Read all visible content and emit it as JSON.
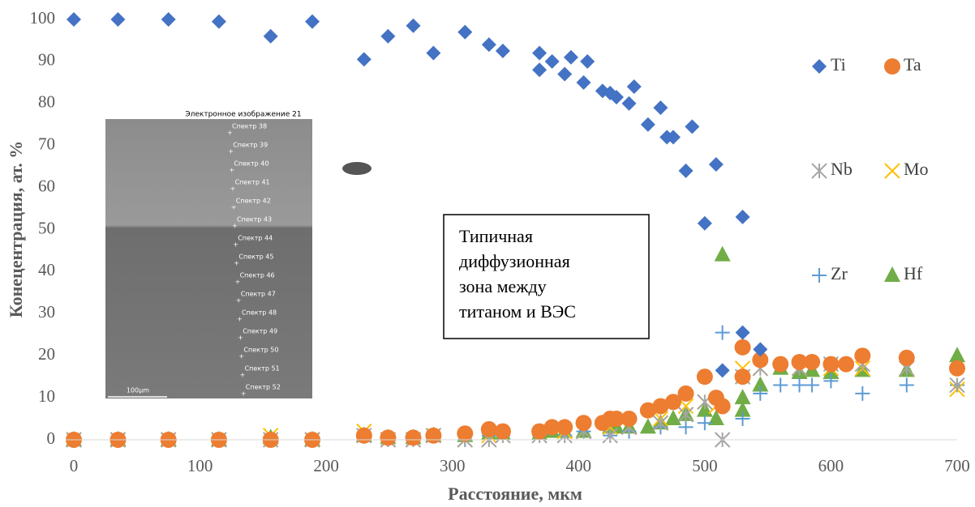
{
  "chart_data": {
    "type": "scatter",
    "xlabel": "Расстояние, мкм",
    "ylabel": "Конецентрация, ат. %",
    "xlim": [
      0,
      700
    ],
    "xticks": [
      0,
      100,
      200,
      300,
      400,
      500,
      600,
      700
    ],
    "ylim": [
      0,
      100
    ],
    "yticks": [
      0,
      10,
      20,
      30,
      40,
      50,
      60,
      70,
      80,
      90,
      100
    ],
    "grid": false,
    "series": [
      {
        "name": "Ti",
        "color": "#4472c4",
        "marker": "diamond",
        "x": [
          0,
          35,
          75,
          115,
          156,
          189,
          230,
          249,
          269,
          285,
          310,
          329,
          340,
          369,
          369,
          379,
          389,
          394,
          404,
          407,
          419,
          425,
          430,
          440,
          444,
          455,
          465,
          470,
          475,
          485,
          490,
          500,
          509,
          514,
          530,
          530,
          544
        ],
        "values": [
          100,
          100,
          100,
          99.5,
          96,
          99.5,
          90.5,
          96,
          98.5,
          92,
          97,
          94,
          92.5,
          92,
          88,
          90,
          87,
          91,
          85,
          90,
          83,
          82.5,
          81.5,
          80,
          84,
          75,
          79,
          72,
          72,
          64,
          74.5,
          51.5,
          65.5,
          16.5,
          53,
          25.5,
          21.5
        ]
      },
      {
        "name": "Ta",
        "color": "#ed7d31",
        "marker": "circle",
        "x": [
          0,
          35,
          75,
          115,
          156,
          189,
          230,
          249,
          269,
          285,
          310,
          329,
          340,
          369,
          379,
          389,
          404,
          419,
          425,
          430,
          440,
          455,
          465,
          475,
          485,
          500,
          509,
          514,
          530,
          530,
          544,
          560,
          575,
          585,
          600,
          612,
          625,
          660,
          700
        ],
        "values": [
          0,
          0,
          0,
          0,
          0,
          0,
          1,
          0.5,
          0.5,
          1,
          1.5,
          2.5,
          2,
          2,
          3,
          3,
          4,
          4,
          5,
          5,
          5,
          7,
          8,
          9,
          11,
          15,
          10,
          8,
          22,
          15,
          19,
          18,
          18.5,
          18.5,
          18,
          18,
          20,
          19.5,
          17
        ]
      },
      {
        "name": "Nb",
        "color": "#a5a5a5",
        "marker": "asterisk",
        "x": [
          0,
          35,
          75,
          115,
          156,
          189,
          230,
          249,
          269,
          285,
          310,
          329,
          340,
          369,
          389,
          404,
          425,
          440,
          465,
          485,
          500,
          514,
          530,
          544,
          575,
          600,
          625,
          660,
          700
        ],
        "values": [
          0,
          0,
          0,
          0,
          0,
          0,
          1,
          0,
          0,
          1,
          0,
          0,
          1,
          1,
          1,
          2,
          1,
          3,
          4,
          6,
          9,
          0,
          15,
          17,
          17,
          18,
          18,
          17,
          13
        ]
      },
      {
        "name": "Mo",
        "color": "#ffc000",
        "marker": "cross",
        "x": [
          0,
          35,
          75,
          115,
          156,
          189,
          230,
          249,
          269,
          285,
          310,
          329,
          340,
          369,
          389,
          404,
          425,
          440,
          465,
          485,
          500,
          509,
          530,
          544,
          575,
          600,
          625,
          660,
          700
        ],
        "values": [
          0,
          0,
          0,
          0,
          1,
          0,
          2,
          0,
          0,
          1,
          0,
          1,
          1,
          1,
          2,
          2,
          3,
          3,
          5,
          8,
          9,
          8,
          17,
          17,
          17,
          17,
          17,
          17,
          12
        ]
      },
      {
        "name": "Zr",
        "color": "#5b9bd5",
        "marker": "plus",
        "x": [
          0,
          35,
          75,
          115,
          156,
          189,
          230,
          249,
          269,
          285,
          310,
          329,
          340,
          369,
          389,
          404,
          425,
          440,
          465,
          485,
          500,
          514,
          530,
          544,
          560,
          575,
          585,
          600,
          625,
          660,
          700
        ],
        "values": [
          0,
          0,
          0,
          0,
          0,
          0,
          1,
          0,
          0,
          1,
          0,
          1,
          1,
          1,
          1,
          2,
          1,
          2,
          3,
          3,
          4,
          25.5,
          5,
          11,
          13,
          13,
          13,
          14,
          11,
          13,
          13
        ]
      },
      {
        "name": "Hf",
        "color": "#70ad47",
        "marker": "triangle",
        "x": [
          0,
          35,
          75,
          115,
          156,
          189,
          230,
          249,
          269,
          285,
          310,
          329,
          340,
          369,
          379,
          389,
          404,
          425,
          430,
          440,
          455,
          465,
          475,
          485,
          500,
          509,
          514,
          530,
          530,
          544,
          560,
          575,
          585,
          600,
          625,
          660,
          700
        ],
        "values": [
          0,
          0,
          0,
          0,
          0.5,
          0,
          1,
          0.5,
          0.5,
          1,
          1,
          1.5,
          1.5,
          1.5,
          2,
          2,
          2,
          3,
          3,
          3,
          3,
          4,
          5,
          6,
          7,
          5,
          44,
          7,
          10,
          13,
          17,
          16,
          16.5,
          16,
          16.5,
          16.5,
          20
        ]
      }
    ],
    "annotation": [
      "Типичная",
      "диффузионная",
      "зона между",
      "титаном и ВЭС"
    ],
    "inset": {
      "title": "Электронное изображение 21",
      "labels": [
        "Спектр 38",
        "Спектр 39",
        "Спектр 40",
        "Спектр 41",
        "Спектр 42",
        "Спектр 43",
        "Спектр 44",
        "Спектр 45",
        "Спектр 46",
        "Спектр 47",
        "Спектр 48",
        "Спектр 49",
        "Спектр 50",
        "Спектр 51",
        "Спектр 52"
      ],
      "scale": "100µm"
    }
  }
}
